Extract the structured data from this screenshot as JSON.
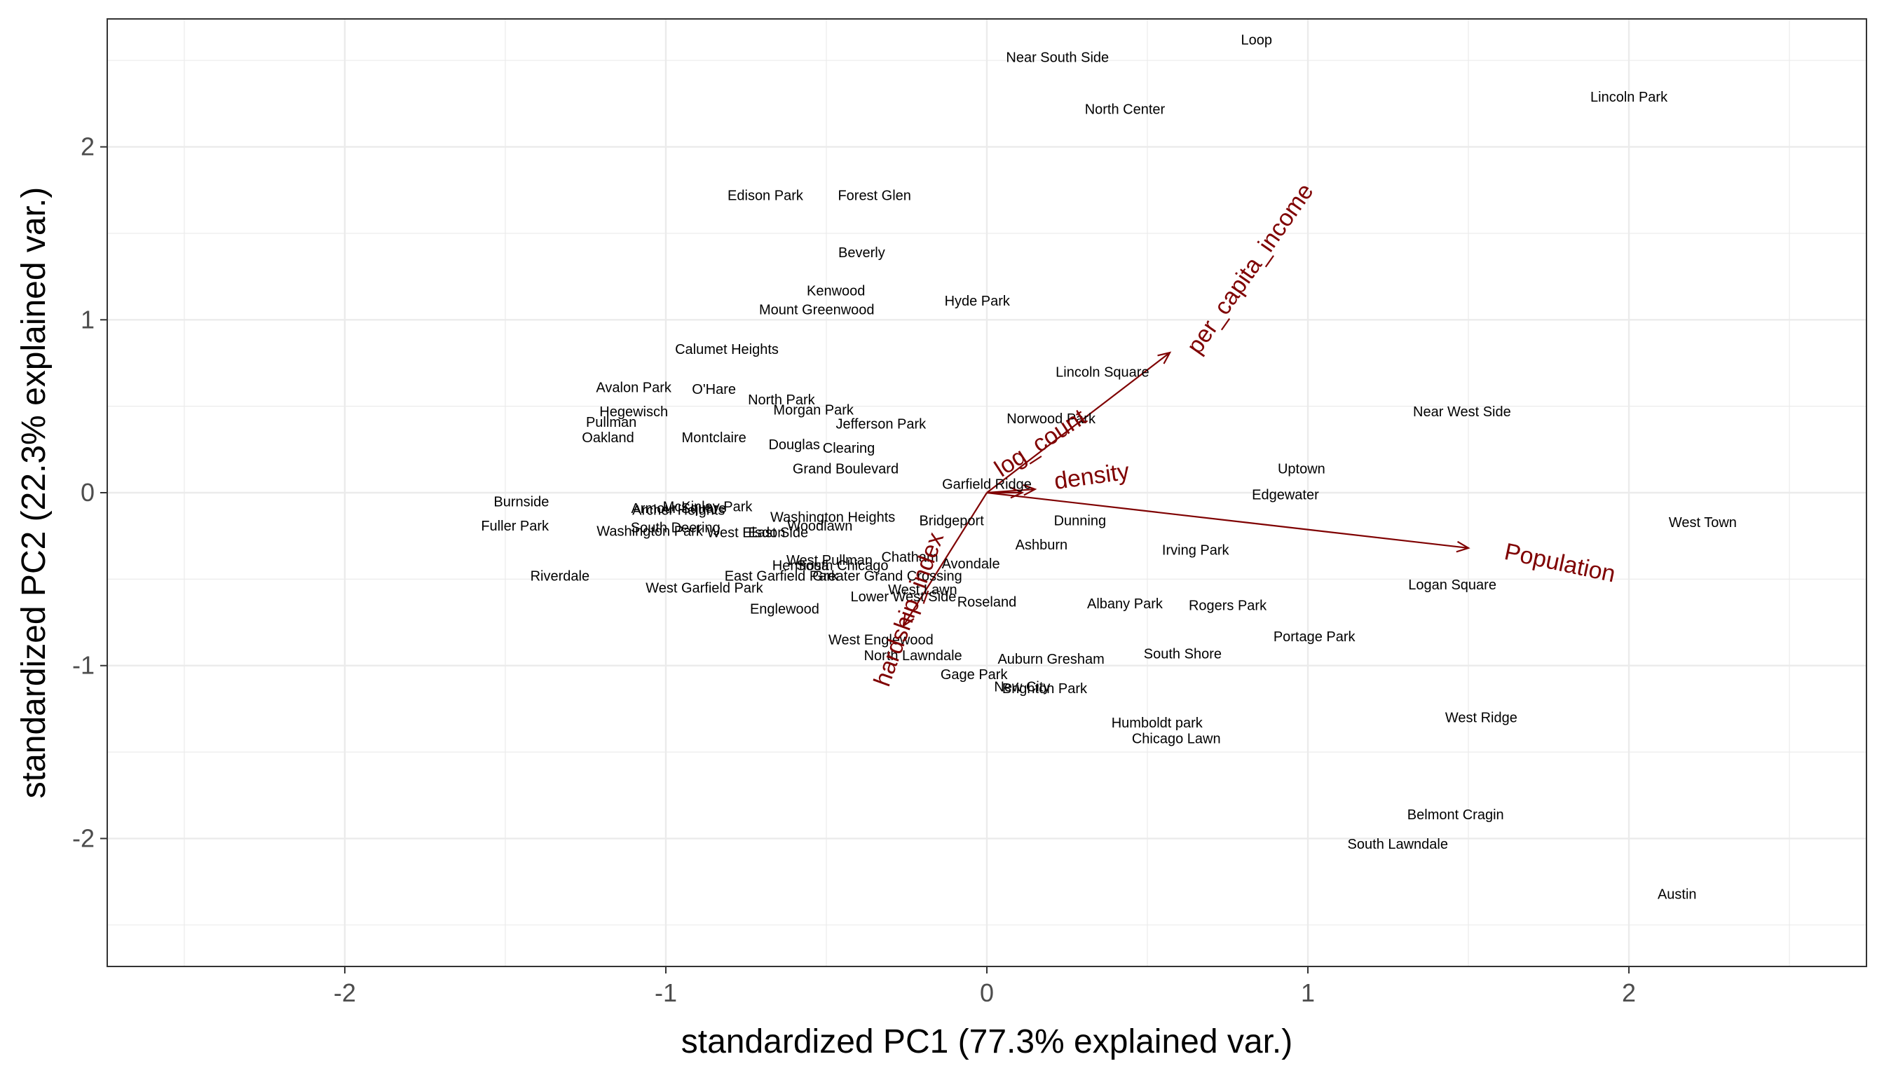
{
  "chart_data": {
    "type": "scatter",
    "subtype": "pca-biplot",
    "title": "",
    "xlabel": "standardized PC1 (77.3% explained var.)",
    "ylabel": "standardized PC2 (22.3% explained var.)",
    "xlim": [
      -2.74,
      2.74
    ],
    "ylim": [
      -2.74,
      2.74
    ],
    "x_ticks": [
      -2,
      -1,
      0,
      1,
      2
    ],
    "y_ticks": [
      -2,
      -1,
      0,
      1,
      2
    ],
    "x_tick_labels": [
      "-2",
      "-1",
      "0",
      "1",
      "2"
    ],
    "y_tick_labels": [
      "-2",
      "-1",
      "0",
      "1",
      "2"
    ],
    "grid": true,
    "legend": "none",
    "colors": {
      "points": "#000000",
      "arrows": "#7f0000",
      "grid": "#ebebeb",
      "border": "#333333"
    },
    "points": [
      {
        "label": "Loop",
        "x": 0.84,
        "y": 2.62
      },
      {
        "label": "Near South Side",
        "x": 0.22,
        "y": 2.52
      },
      {
        "label": "North Center",
        "x": 0.43,
        "y": 2.22
      },
      {
        "label": "Lincoln Park",
        "x": 2.0,
        "y": 2.29
      },
      {
        "label": "Edison Park",
        "x": -0.69,
        "y": 1.72
      },
      {
        "label": "Forest Glen",
        "x": -0.35,
        "y": 1.72
      },
      {
        "label": "Beverly",
        "x": -0.39,
        "y": 1.39
      },
      {
        "label": "Kenwood",
        "x": -0.47,
        "y": 1.17
      },
      {
        "label": "Hyde Park",
        "x": -0.03,
        "y": 1.11
      },
      {
        "label": "Mount Greenwood",
        "x": -0.53,
        "y": 1.06
      },
      {
        "label": "Calumet Heights",
        "x": -0.81,
        "y": 0.83
      },
      {
        "label": "Lincoln Square",
        "x": 0.36,
        "y": 0.7
      },
      {
        "label": "Avalon Park",
        "x": -1.1,
        "y": 0.61
      },
      {
        "label": "O'Hare",
        "x": -0.85,
        "y": 0.6
      },
      {
        "label": "North Park",
        "x": -0.64,
        "y": 0.54
      },
      {
        "label": "Hegewisch",
        "x": -1.1,
        "y": 0.47
      },
      {
        "label": "Morgan Park",
        "x": -0.54,
        "y": 0.48
      },
      {
        "label": "Near West Side",
        "x": 1.48,
        "y": 0.47
      },
      {
        "label": "Norwood Park",
        "x": 0.2,
        "y": 0.43
      },
      {
        "label": "Jefferson Park",
        "x": -0.33,
        "y": 0.4
      },
      {
        "label": "Pullman",
        "x": -1.17,
        "y": 0.41
      },
      {
        "label": "Oakland",
        "x": -1.18,
        "y": 0.32
      },
      {
        "label": "Montclaire",
        "x": -0.85,
        "y": 0.32
      },
      {
        "label": "Douglas",
        "x": -0.6,
        "y": 0.28
      },
      {
        "label": "Clearing",
        "x": -0.43,
        "y": 0.26
      },
      {
        "label": "Grand Boulevard",
        "x": -0.44,
        "y": 0.14
      },
      {
        "label": "Uptown",
        "x": 0.98,
        "y": 0.14
      },
      {
        "label": "Garfield Ridge",
        "x": 0.0,
        "y": 0.05
      },
      {
        "label": "Edgewater",
        "x": 0.93,
        "y": -0.01
      },
      {
        "label": "Burnside",
        "x": -1.45,
        "y": -0.05
      },
      {
        "label": "Armour Square",
        "x": -0.96,
        "y": -0.09
      },
      {
        "label": "McKinley Park",
        "x": -0.87,
        "y": -0.08
      },
      {
        "label": "Archer Heights",
        "x": -0.96,
        "y": -0.1
      },
      {
        "label": "Washington Heights",
        "x": -0.48,
        "y": -0.14
      },
      {
        "label": "Bridgeport",
        "x": -0.11,
        "y": -0.16
      },
      {
        "label": "Dunning",
        "x": 0.29,
        "y": -0.16
      },
      {
        "label": "West Town",
        "x": 2.23,
        "y": -0.17
      },
      {
        "label": "Fuller Park",
        "x": -1.47,
        "y": -0.19
      },
      {
        "label": "South Deering",
        "x": -0.97,
        "y": -0.2
      },
      {
        "label": "Woodlawn",
        "x": -0.52,
        "y": -0.19
      },
      {
        "label": "Washington Park",
        "x": -1.05,
        "y": -0.22
      },
      {
        "label": "West Elsdon",
        "x": -0.75,
        "y": -0.23
      },
      {
        "label": "East Side",
        "x": -0.65,
        "y": -0.23
      },
      {
        "label": "Ashburn",
        "x": 0.17,
        "y": -0.3
      },
      {
        "label": "Irving Park",
        "x": 0.65,
        "y": -0.33
      },
      {
        "label": "Chatham",
        "x": -0.24,
        "y": -0.37
      },
      {
        "label": "West Pullman",
        "x": -0.49,
        "y": -0.39
      },
      {
        "label": "Hermosa",
        "x": -0.58,
        "y": -0.42
      },
      {
        "label": "South Chicago",
        "x": -0.45,
        "y": -0.42
      },
      {
        "label": "Avondale",
        "x": -0.05,
        "y": -0.41
      },
      {
        "label": "Riverdale",
        "x": -1.33,
        "y": -0.48
      },
      {
        "label": "East Garfield Park",
        "x": -0.64,
        "y": -0.48
      },
      {
        "label": "Greater Grand Crossing",
        "x": -0.31,
        "y": -0.48
      },
      {
        "label": "Logan Square",
        "x": 1.45,
        "y": -0.53
      },
      {
        "label": "West Garfield Park",
        "x": -0.88,
        "y": -0.55
      },
      {
        "label": "West Lawn",
        "x": -0.2,
        "y": -0.56
      },
      {
        "label": "Lower West Side",
        "x": -0.26,
        "y": -0.6
      },
      {
        "label": "Roseland",
        "x": 0.0,
        "y": -0.63
      },
      {
        "label": "Albany Park",
        "x": 0.43,
        "y": -0.64
      },
      {
        "label": "Rogers Park",
        "x": 0.75,
        "y": -0.65
      },
      {
        "label": "Englewood",
        "x": -0.63,
        "y": -0.67
      },
      {
        "label": "Portage Park",
        "x": 1.02,
        "y": -0.83
      },
      {
        "label": "West Englewood",
        "x": -0.33,
        "y": -0.85
      },
      {
        "label": "North Lawndale",
        "x": -0.23,
        "y": -0.94
      },
      {
        "label": "South Shore",
        "x": 0.61,
        "y": -0.93
      },
      {
        "label": "Auburn Gresham",
        "x": 0.2,
        "y": -0.96
      },
      {
        "label": "Gage Park",
        "x": -0.04,
        "y": -1.05
      },
      {
        "label": "New City",
        "x": 0.11,
        "y": -1.12
      },
      {
        "label": "Brighton Park",
        "x": 0.18,
        "y": -1.13
      },
      {
        "label": "West Ridge",
        "x": 1.54,
        "y": -1.3
      },
      {
        "label": "Humboldt park",
        "x": 0.53,
        "y": -1.33
      },
      {
        "label": "Chicago Lawn",
        "x": 0.59,
        "y": -1.42
      },
      {
        "label": "Belmont Cragin",
        "x": 1.46,
        "y": -1.86
      },
      {
        "label": "South Lawndale",
        "x": 1.28,
        "y": -2.03
      },
      {
        "label": "Austin",
        "x": 2.15,
        "y": -2.32
      }
    ],
    "loadings": [
      {
        "label": "per_capita_income",
        "x": 0.57,
        "y": 0.81,
        "lx": 0.84,
        "ly": 1.27,
        "angle": -55,
        "anchor": "middle"
      },
      {
        "label": "Population",
        "x": 1.5,
        "y": -0.32,
        "lx": 1.78,
        "ly": -0.45,
        "angle": 12,
        "anchor": "middle"
      },
      {
        "label": "hardship_index",
        "x": -0.26,
        "y": -0.77,
        "lx": -0.22,
        "ly": -0.69,
        "angle": -70,
        "anchor": "middle"
      },
      {
        "label": "log_count",
        "x": 0.15,
        "y": 0.02,
        "lx": 0.18,
        "ly": 0.25,
        "angle": -33,
        "anchor": "middle"
      },
      {
        "label": "density",
        "x": 0.11,
        "y": 0.0,
        "lx": 0.33,
        "ly": 0.05,
        "angle": -8,
        "anchor": "middle"
      }
    ]
  }
}
